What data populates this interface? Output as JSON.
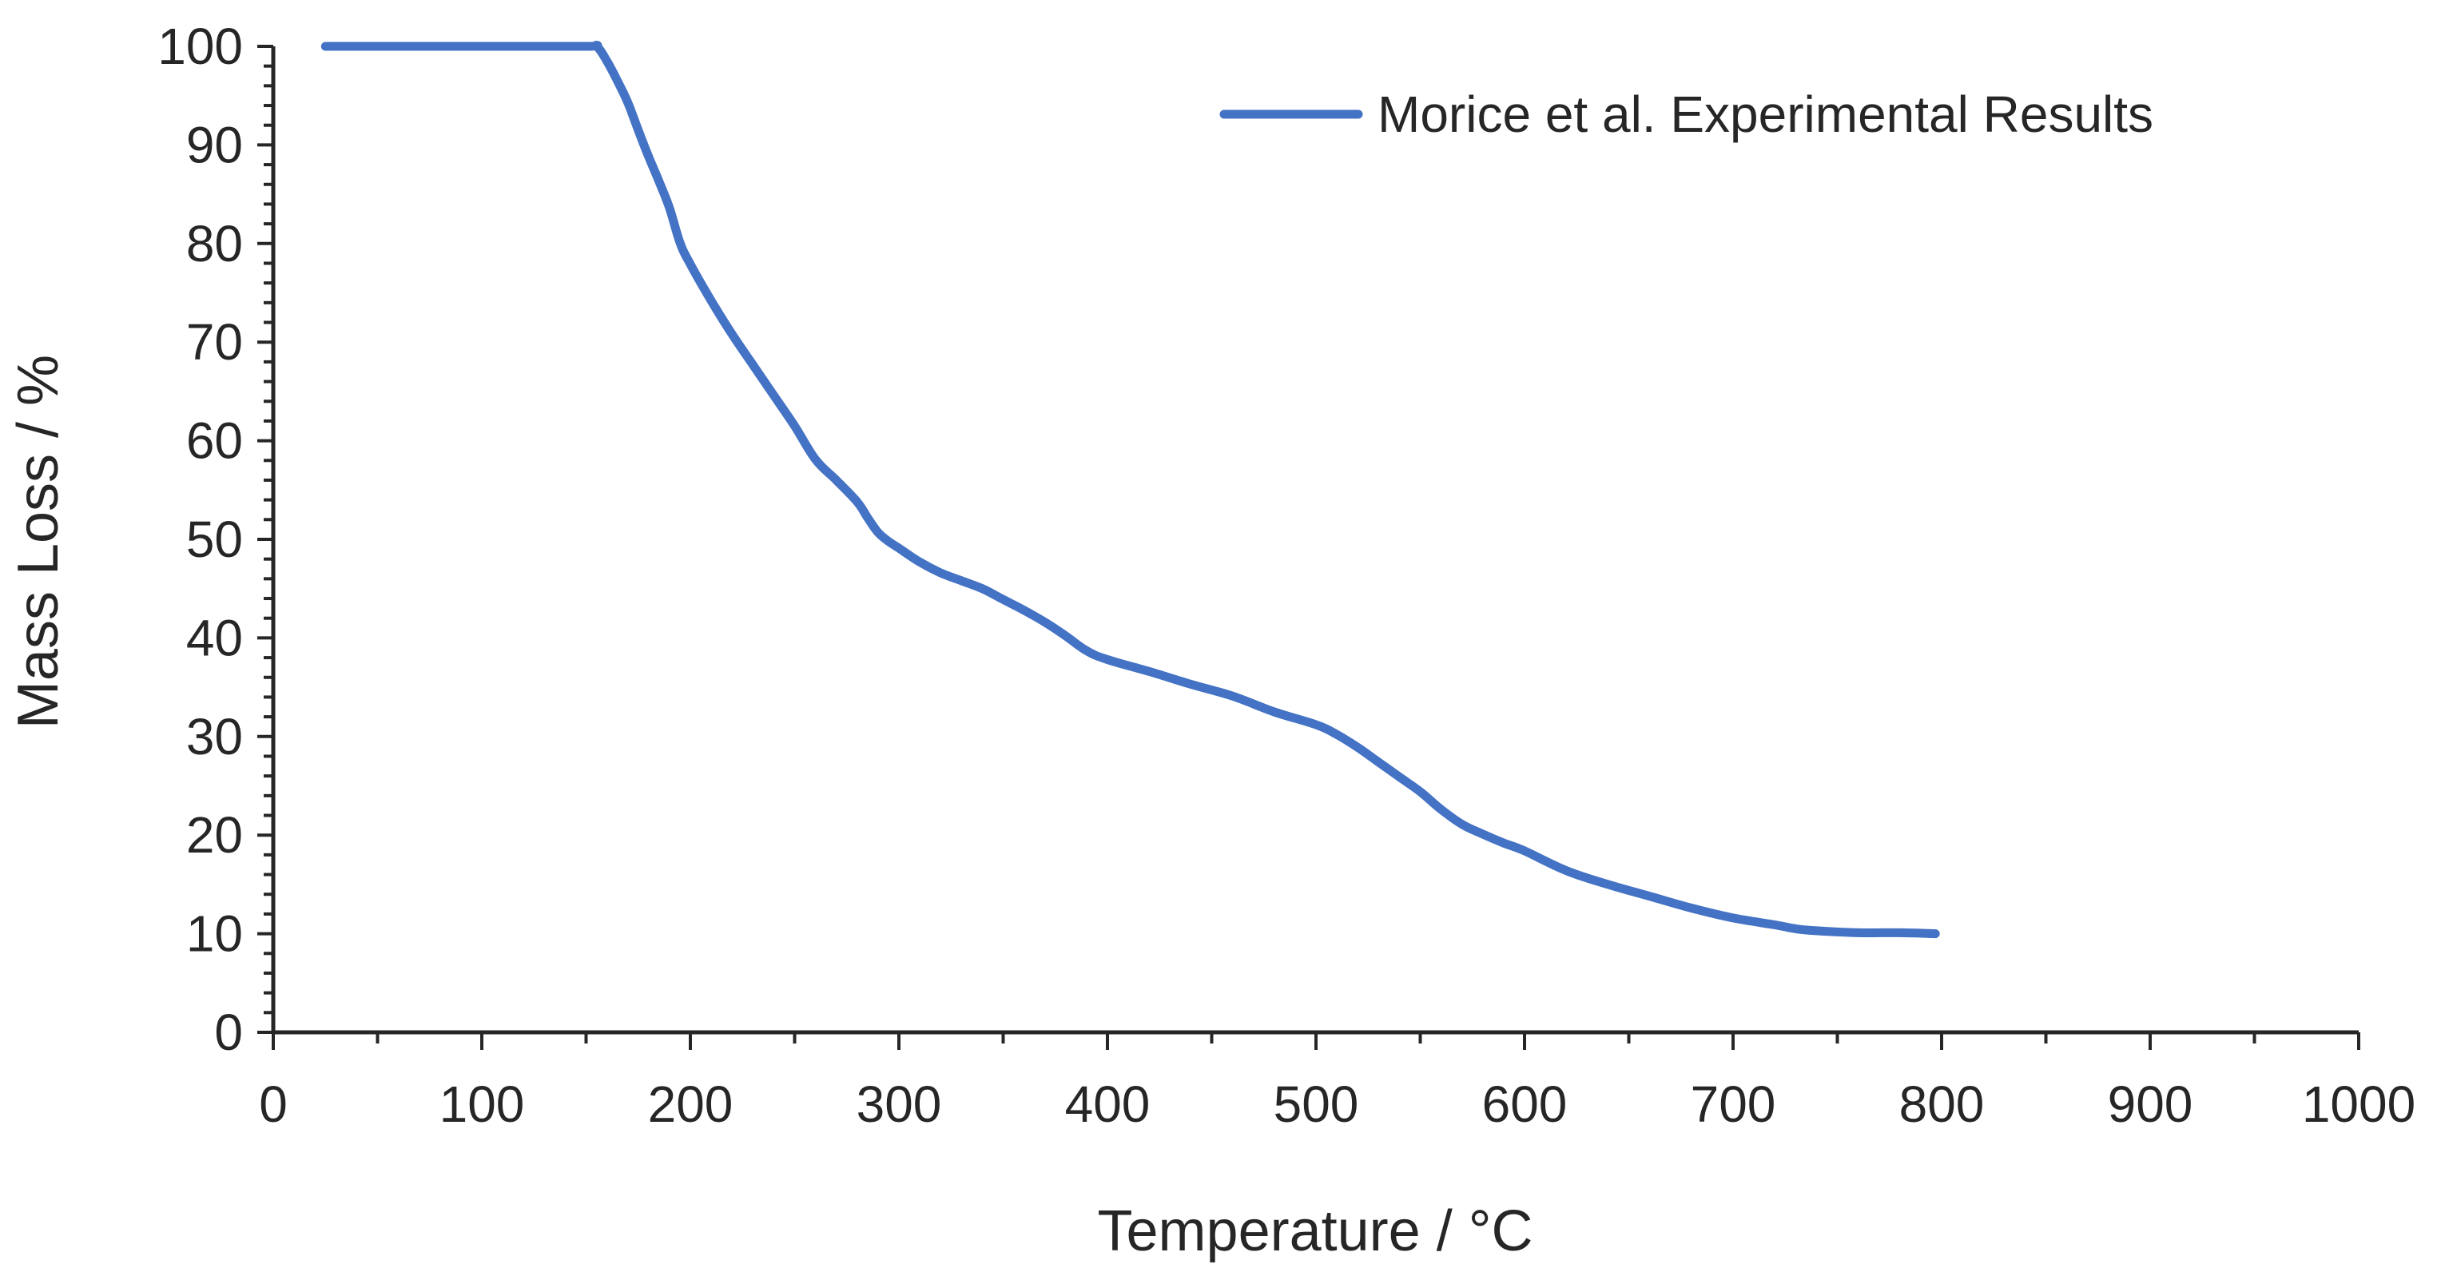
{
  "chart_data": {
    "type": "line",
    "title": "",
    "xlabel": "Temperature / °C",
    "ylabel": "Mass Loss / %",
    "xlim": [
      0,
      1000
    ],
    "ylim": [
      0,
      100
    ],
    "x_ticks": [
      0,
      100,
      200,
      300,
      400,
      500,
      600,
      700,
      800,
      900,
      1000
    ],
    "y_ticks": [
      0,
      10,
      20,
      30,
      40,
      50,
      60,
      70,
      80,
      90,
      100
    ],
    "grid": false,
    "legend_position": "top-right",
    "series": [
      {
        "name": "Morice et al. Experimental Results",
        "color": "#4472C4",
        "x": [
          25,
          50,
          100,
          150,
          155,
          160,
          165,
          170,
          175,
          180,
          185,
          190,
          195,
          200,
          210,
          220,
          230,
          240,
          250,
          260,
          270,
          280,
          285,
          290,
          295,
          300,
          310,
          320,
          330,
          340,
          350,
          360,
          370,
          380,
          390,
          400,
          420,
          440,
          460,
          480,
          500,
          510,
          520,
          530,
          540,
          550,
          560,
          570,
          580,
          590,
          600,
          620,
          640,
          660,
          680,
          700,
          720,
          730,
          740,
          760,
          780,
          797
        ],
        "values": [
          100,
          100,
          100,
          100,
          100,
          98.5,
          96.5,
          94.3,
          91.5,
          88.8,
          86.3,
          83.6,
          80.1,
          77.9,
          74.2,
          70.8,
          67.7,
          64.6,
          61.5,
          58.1,
          56,
          53.8,
          52.2,
          50.7,
          49.8,
          49.1,
          47.7,
          46.6,
          45.8,
          45,
          43.9,
          42.8,
          41.6,
          40.2,
          38.7,
          37.8,
          36.6,
          35.3,
          34.1,
          32.5,
          31.2,
          30.2,
          28.9,
          27.4,
          25.9,
          24.4,
          22.6,
          21.1,
          20.1,
          19.2,
          18.4,
          16.4,
          15,
          13.8,
          12.6,
          11.6,
          10.9,
          10.5,
          10.3,
          10.1,
          10.1,
          10
        ]
      }
    ]
  }
}
